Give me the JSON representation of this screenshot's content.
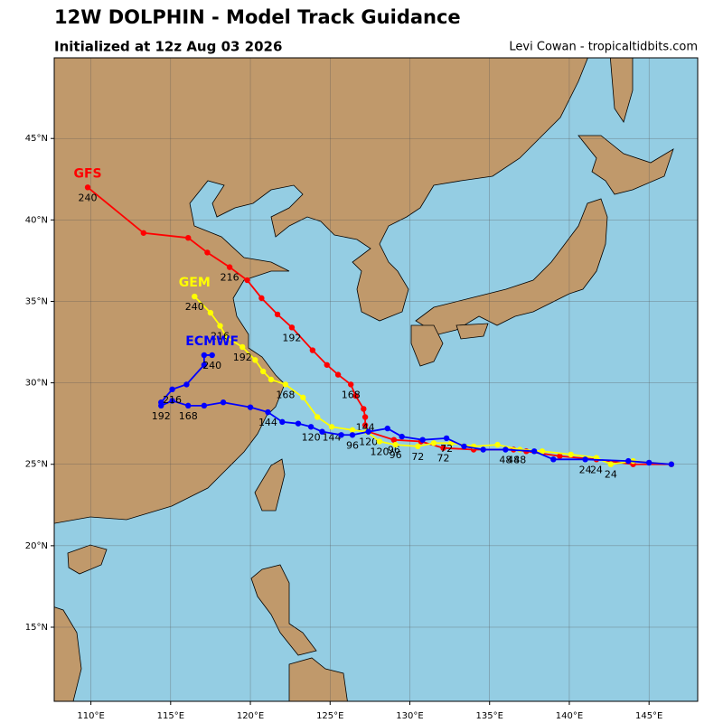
{
  "chart_data": {
    "type": "track",
    "title": "12W DOLPHIN - Model Track Guidance",
    "subtitle": "Initialized at 12z Aug 03 2026",
    "credit": "Levi Cowan - tropicaltidbits.com",
    "xlim": [
      107.7,
      148.05
    ],
    "ylim": [
      10.45,
      49.95
    ],
    "xticks": [
      {
        "value": 110,
        "label": "110°E"
      },
      {
        "value": 115,
        "label": "115°E"
      },
      {
        "value": 120,
        "label": "120°E"
      },
      {
        "value": 125,
        "label": "125°E"
      },
      {
        "value": 130,
        "label": "130°E"
      },
      {
        "value": 135,
        "label": "135°E"
      },
      {
        "value": 140,
        "label": "140°E"
      },
      {
        "value": 145,
        "label": "145°E"
      }
    ],
    "yticks": [
      {
        "value": 15,
        "label": "15°N"
      },
      {
        "value": 20,
        "label": "20°N"
      },
      {
        "value": 25,
        "label": "25°N"
      },
      {
        "value": 30,
        "label": "30°N"
      },
      {
        "value": 35,
        "label": "35°N"
      },
      {
        "value": 40,
        "label": "40°N"
      },
      {
        "value": 45,
        "label": "45°N"
      }
    ],
    "grid": true,
    "series": [
      {
        "name": "GFS",
        "color": "#ff0000",
        "x": [
          146.4,
          144.0,
          141.7,
          139.4,
          137.3,
          136.5,
          134.0,
          132.1,
          130.7,
          129.0,
          127.4,
          127.2,
          127.2,
          127.1,
          126.6,
          126.3,
          125.5,
          124.8,
          123.9,
          122.6,
          121.7,
          120.7,
          119.8,
          118.7,
          117.3,
          116.1,
          113.3,
          109.8
        ],
        "y": [
          25.0,
          25.0,
          25.3,
          25.5,
          25.8,
          25.9,
          25.9,
          26.0,
          26.4,
          26.5,
          27.0,
          27.4,
          27.9,
          28.4,
          29.2,
          29.9,
          30.5,
          31.1,
          32.0,
          33.4,
          34.2,
          35.2,
          36.3,
          37.1,
          38.0,
          38.9,
          39.2,
          42.0
        ],
        "labels": [
          null,
          null,
          24,
          null,
          null,
          48,
          null,
          72,
          null,
          96,
          120,
          null,
          144,
          null,
          null,
          168,
          null,
          null,
          null,
          192,
          null,
          null,
          null,
          216,
          null,
          null,
          null,
          240
        ]
      },
      {
        "name": "GEM",
        "color": "#ffff00",
        "x": [
          146.4,
          144.0,
          142.6,
          141.7,
          140.1,
          138.3,
          136.9,
          135.5,
          134.0,
          132.6,
          131.5,
          130.5,
          129.1,
          128.1,
          127.3,
          126.4,
          125.1,
          124.2,
          123.3,
          122.2,
          121.3,
          120.8,
          120.3,
          119.5,
          118.5,
          118.1,
          117.5,
          116.5
        ],
        "y": [
          25.0,
          25.2,
          25.0,
          25.4,
          25.6,
          25.8,
          25.9,
          26.2,
          26.1,
          26.3,
          26.3,
          26.1,
          26.2,
          26.4,
          27.0,
          27.1,
          27.3,
          27.9,
          29.1,
          29.9,
          30.2,
          30.7,
          31.4,
          32.2,
          32.8,
          33.5,
          34.3,
          35.3
        ],
        "labels": [
          null,
          null,
          24,
          null,
          null,
          null,
          48,
          null,
          null,
          null,
          null,
          72,
          96,
          120,
          null,
          null,
          144,
          null,
          null,
          168,
          null,
          null,
          null,
          192,
          null,
          216,
          null,
          240
        ]
      },
      {
        "name": "ECMWF",
        "color": "#0000ff",
        "x": [
          146.4,
          145.0,
          143.7,
          141.0,
          139.0,
          137.8,
          136.0,
          134.6,
          133.4,
          132.3,
          130.8,
          129.5,
          128.6,
          127.4,
          126.4,
          125.7,
          124.5,
          123.8,
          123.0,
          122.0,
          121.1,
          120.0,
          118.3,
          117.1,
          116.1,
          115.1,
          114.4,
          114.4,
          115.1,
          116.0,
          117.1,
          117.1,
          117.6
        ],
        "y": [
          25.0,
          25.1,
          25.2,
          25.3,
          25.3,
          25.8,
          25.9,
          25.9,
          26.1,
          26.6,
          26.5,
          26.7,
          27.2,
          27.0,
          26.8,
          26.8,
          27.0,
          27.3,
          27.5,
          27.6,
          28.2,
          28.5,
          28.8,
          28.6,
          28.6,
          28.9,
          28.6,
          28.8,
          29.6,
          29.9,
          31.1,
          31.7,
          31.7
        ],
        "labels": [
          null,
          null,
          null,
          24,
          null,
          null,
          48,
          null,
          null,
          72,
          null,
          null,
          null,
          null,
          96,
          null,
          null,
          120,
          null,
          null,
          144,
          null,
          null,
          null,
          168,
          null,
          192,
          null,
          216,
          null,
          null,
          null,
          240
        ]
      }
    ]
  }
}
